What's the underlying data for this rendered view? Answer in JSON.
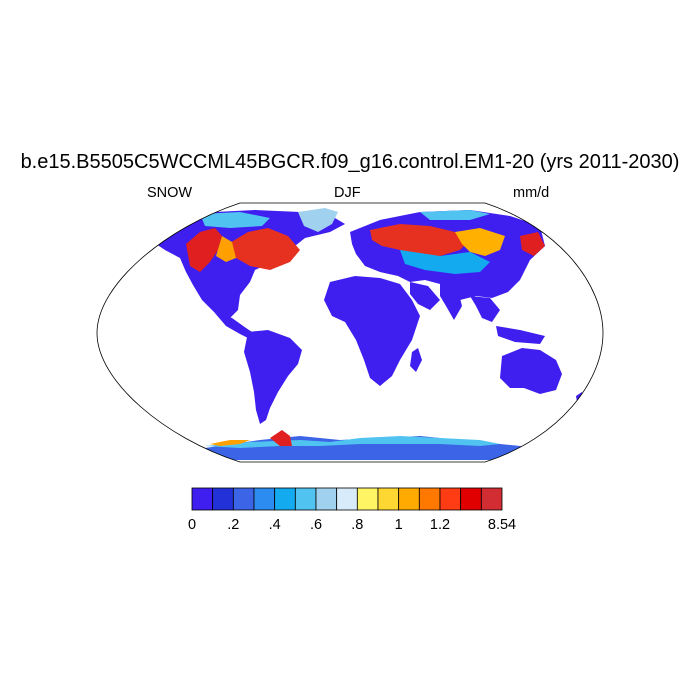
{
  "title": "b.e15.B5505C5WCCML45BGCR.f09_g16.control.EM1-20 (yrs 2011-2030)",
  "left_label": "SNOW",
  "center_label": "DJF",
  "right_label": "mm/d",
  "colorbar": {
    "colors": [
      "#3f1ef0",
      "#2332d8",
      "#3c64e6",
      "#2d8cf0",
      "#14aaf0",
      "#50c3f0",
      "#a0d2f0",
      "#d7ebfa",
      "#fff564",
      "#ffd732",
      "#ffaa00",
      "#ff7800",
      "#ff3c14",
      "#e10000",
      "#d22d32"
    ],
    "labels": [
      "0",
      ".2",
      ".4",
      ".6",
      ".8",
      "1",
      "1.2",
      "8.54"
    ]
  }
}
